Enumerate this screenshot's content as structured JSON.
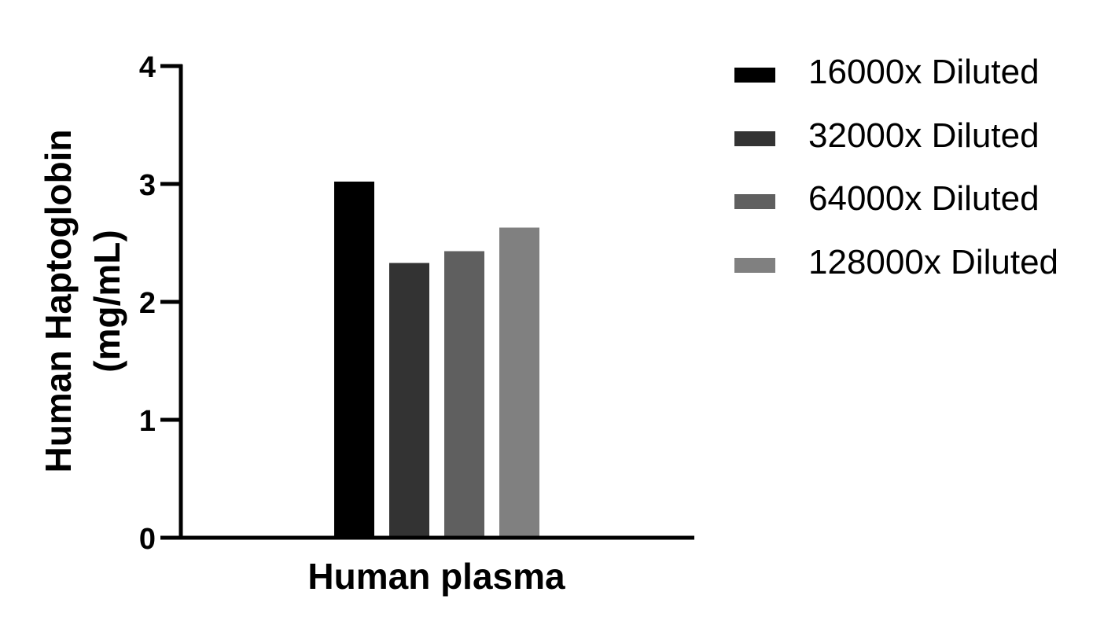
{
  "chart_data": {
    "type": "bar",
    "title": "",
    "categories": [
      "Human plasma"
    ],
    "series": [
      {
        "name": "16000x Diluted",
        "values": [
          3.02
        ],
        "color": "#000000"
      },
      {
        "name": "32000x Diluted",
        "values": [
          2.33
        ],
        "color": "#333333"
      },
      {
        "name": "64000x Diluted",
        "values": [
          2.43
        ],
        "color": "#5f5f5f"
      },
      {
        "name": "128000x Diluted",
        "values": [
          2.63
        ],
        "color": "#808080"
      }
    ],
    "xlabel": "Human plasma",
    "ylabel": "Human Haptoglobin (mg/mL)",
    "ylabel_lines": [
      "Human Haptoglobin",
      "(mg/mL)"
    ],
    "ylim": [
      0,
      4
    ],
    "yticks": [
      "0",
      "1",
      "2",
      "3",
      "4"
    ],
    "grid": false,
    "legend_position": "right"
  },
  "legend": {
    "items": [
      {
        "label": "16000x Diluted",
        "color": "#000000"
      },
      {
        "label": "32000x Diluted",
        "color": "#333333"
      },
      {
        "label": "64000x Diluted",
        "color": "#5f5f5f"
      },
      {
        "label": "128000x Diluted",
        "color": "#808080"
      }
    ]
  }
}
